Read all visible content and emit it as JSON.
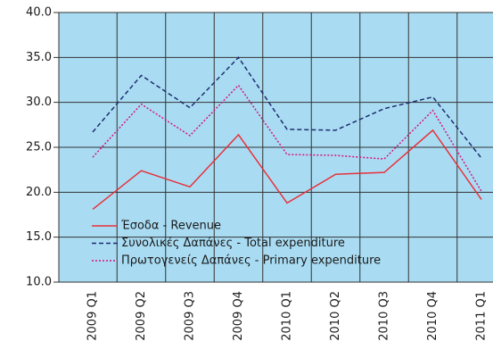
{
  "chart_data": {
    "type": "line",
    "categories": [
      "2009 Q1",
      "2009 Q2",
      "2009 Q3",
      "2009 Q4",
      "2010 Q1",
      "2010 Q2",
      "2010 Q3",
      "2010 Q4",
      "2011 Q1"
    ],
    "series": [
      {
        "name": "Έσοδα - Revenue",
        "color": "#e8303a",
        "dash": "solid",
        "values": [
          18.1,
          22.4,
          20.6,
          26.4,
          18.8,
          22.0,
          22.2,
          26.9,
          19.2
        ]
      },
      {
        "name": "Συνολικές Δαπάνες - Total expenditure",
        "color": "#1f2d6e",
        "dash": "dashed",
        "values": [
          26.7,
          33.0,
          29.4,
          35.0,
          27.0,
          26.9,
          29.3,
          30.6,
          23.8
        ]
      },
      {
        "name": "Πρωτογενείς Δαπάνες - Primary expenditure",
        "color": "#d6147e",
        "dash": "dotted",
        "values": [
          23.9,
          29.8,
          26.3,
          31.9,
          24.2,
          24.1,
          23.7,
          29.1,
          20.1
        ]
      }
    ],
    "ylim": [
      10,
      40
    ],
    "yticks": [
      {
        "value": 10,
        "label": "10.0"
      },
      {
        "value": 15,
        "label": "15.0"
      },
      {
        "value": 20,
        "label": "20.0"
      },
      {
        "value": 25,
        "label": "25.0"
      },
      {
        "value": 30,
        "label": "30.0"
      },
      {
        "value": 35,
        "label": "35.0"
      },
      {
        "value": 40,
        "label": "40.0"
      }
    ],
    "grid": true,
    "legend": "lower left",
    "background": "#a9dcf3"
  }
}
